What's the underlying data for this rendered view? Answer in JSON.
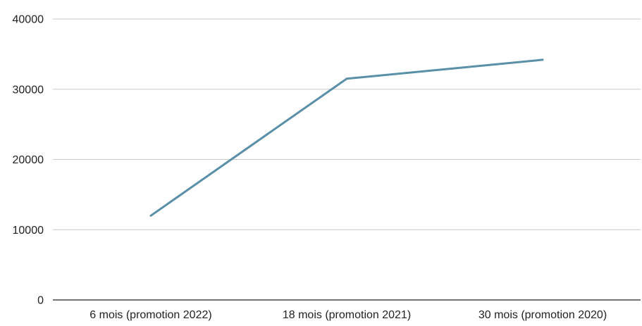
{
  "chart_data": {
    "type": "line",
    "title": "",
    "xlabel": "",
    "ylabel": "",
    "categories": [
      "6 mois (promotion 2022)",
      "18 mois (promotion 2021)",
      "30 mois (promotion 2020)"
    ],
    "series": [
      {
        "values": [
          12000,
          31500,
          34200
        ],
        "color": "#5a8fa8"
      }
    ],
    "ylim": [
      0,
      40000
    ],
    "yticks": [
      0,
      10000,
      20000,
      30000,
      40000
    ],
    "ytick_labels": [
      "0",
      "10000",
      "20000",
      "30000",
      "40000"
    ],
    "grid": true,
    "legend": "none",
    "gridline_color": "#c9c9c9",
    "axis_color": "#222222"
  }
}
